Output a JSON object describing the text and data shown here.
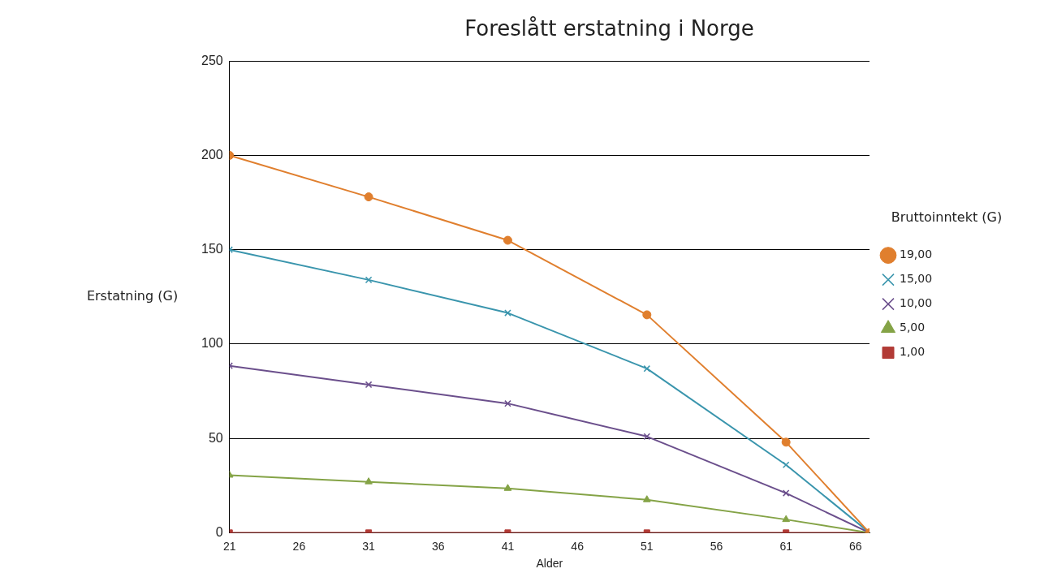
{
  "chart_data": {
    "type": "line",
    "title": "Foreslått erstatning i Norge",
    "xlabel": "Alder",
    "ylabel": "Erstatning (G)",
    "legend_title": "Bruttoinntekt (G)",
    "x": [
      21,
      31,
      41,
      51,
      61,
      67
    ],
    "xlim": [
      21,
      67
    ],
    "xticks": [
      21,
      26,
      31,
      36,
      41,
      46,
      51,
      56,
      61,
      66
    ],
    "ylim": [
      0,
      250
    ],
    "yticks": [
      0,
      50,
      100,
      150,
      200,
      250
    ],
    "grid": "y",
    "legend": "right",
    "series": [
      {
        "name": "19,00",
        "color": "#e07f2e",
        "marker": "circle",
        "values": [
          200,
          178,
          155,
          115.5,
          48,
          0
        ]
      },
      {
        "name": "15,00",
        "color": "#3a95ad",
        "marker": "cross",
        "values": [
          150,
          134,
          116.5,
          87,
          36,
          0
        ]
      },
      {
        "name": "10,00",
        "color": "#6b4f8c",
        "marker": "cross",
        "values": [
          88.5,
          78.5,
          68.5,
          51,
          21,
          0
        ]
      },
      {
        "name": "5,00",
        "color": "#84a346",
        "marker": "triangle",
        "values": [
          30.5,
          27,
          23.5,
          17.5,
          7,
          0
        ]
      },
      {
        "name": "1,00",
        "color": "#b23b36",
        "marker": "square",
        "values": [
          0,
          0,
          0,
          0,
          0,
          0
        ]
      }
    ]
  }
}
